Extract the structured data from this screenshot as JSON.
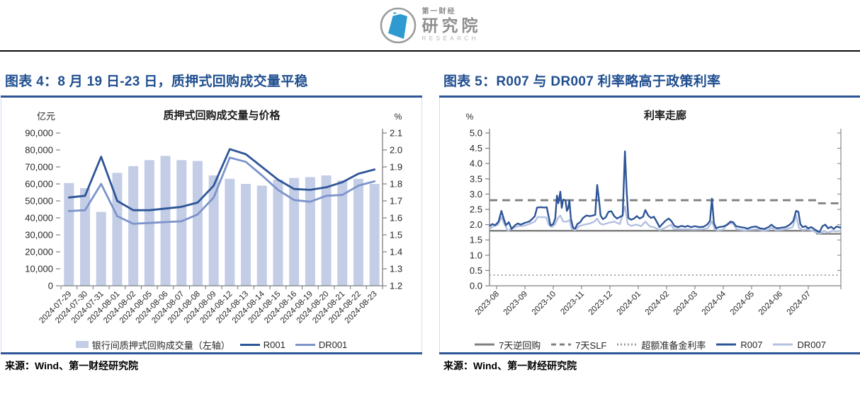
{
  "header": {
    "brand_top": "第一财经",
    "brand_main": "研究院",
    "brand_sub": "RESEARCH"
  },
  "left_panel": {
    "title": "图表 4：8 月 19 日-23 日，质押式回购成交量平稳",
    "source": "来源：Wind、第一财经研究院"
  },
  "right_panel": {
    "title": "图表 5：R007 与 DR007 利率略高于政策利率",
    "source": "来源：Wind、第一财经研究院"
  },
  "colors": {
    "title_blue": "#1f4e8f",
    "rule_blue": "#2e5597",
    "bar_fill": "#c3cde6",
    "r001_line": "#2e5597",
    "dr001_line": "#7d93cb",
    "r007_line": "#2e5597",
    "dr007_line": "#b3c0e0",
    "policy_gray": "#7f7f7f",
    "dotted_gray": "#9b9b9b",
    "axis_gray": "#7f7f7f",
    "logo_blue": "#2e9ad0",
    "logo_gray": "#9c9c9c"
  },
  "chart_data": [
    {
      "type": "bar+line",
      "title": "质押式回购成交量与价格",
      "left_axis_unit": "亿元",
      "right_axis_unit": "%",
      "left_ylim": [
        0,
        90000
      ],
      "left_tick_step": 10000,
      "right_ylim": [
        1.2,
        2.1
      ],
      "right_tick_step": 0.1,
      "categories": [
        "2024-07-29",
        "2024-07-30",
        "2024-07-31",
        "2024-08-01",
        "2024-08-02",
        "2024-08-05",
        "2024-08-06",
        "2024-08-07",
        "2024-08-08",
        "2024-08-09",
        "2024-08-12",
        "2024-08-13",
        "2024-08-14",
        "2024-08-15",
        "2024-08-16",
        "2024-08-19",
        "2024-08-20",
        "2024-08-21",
        "2024-08-22",
        "2024-08-23"
      ],
      "bar_series": {
        "name": "银行间质押式回购成交量（左轴）",
        "axis": "left",
        "values": [
          60500,
          57500,
          43500,
          66500,
          70500,
          74000,
          76500,
          74000,
          73500,
          65000,
          63000,
          60000,
          59000,
          62500,
          63500,
          64000,
          65000,
          62000,
          63000,
          60000
        ]
      },
      "series": [
        {
          "name": "R001",
          "axis": "right",
          "color": "#2e5597",
          "values": [
            1.72,
            1.73,
            1.96,
            1.7,
            1.645,
            1.645,
            1.655,
            1.665,
            1.69,
            1.79,
            2.005,
            1.975,
            1.9,
            1.825,
            1.77,
            1.765,
            1.78,
            1.81,
            1.86,
            1.885
          ]
        },
        {
          "name": "DR001",
          "axis": "right",
          "color": "#7d93cb",
          "values": [
            1.64,
            1.645,
            1.8,
            1.61,
            1.565,
            1.57,
            1.575,
            1.58,
            1.62,
            1.72,
            1.955,
            1.93,
            1.85,
            1.765,
            1.705,
            1.695,
            1.73,
            1.735,
            1.79,
            1.815
          ]
        }
      ],
      "legend_position": "bottom",
      "grid": false
    },
    {
      "type": "line",
      "title": "利率走廊",
      "left_axis_unit": "%",
      "ylim": [
        0,
        5
      ],
      "ytick_step": 0.5,
      "x_max": 12.4,
      "x_tick_labels": [
        "2023-08",
        "2023-09",
        "2023-10",
        "2023-11",
        "2023-12",
        "2024-01",
        "2024-02",
        "2024-03",
        "2024-04",
        "2024-05",
        "2024-06",
        "2024-07"
      ],
      "series": [
        {
          "name": "7天逆回购",
          "color": "#7f7f7f",
          "width": 2.4,
          "dash": "",
          "points": [
            [
              0,
              1.8
            ],
            [
              11.55,
              1.8
            ],
            [
              11.55,
              1.7
            ],
            [
              12.4,
              1.7
            ]
          ]
        },
        {
          "name": "7天SLF",
          "color": "#7f7f7f",
          "width": 2.8,
          "dash": "11,7",
          "points": [
            [
              0,
              2.8
            ],
            [
              11.55,
              2.8
            ],
            [
              11.55,
              2.7
            ],
            [
              12.4,
              2.7
            ]
          ]
        },
        {
          "name": "超额准备金利率",
          "color": "#9b9b9b",
          "width": 1.8,
          "dash": "2,3.5",
          "points": [
            [
              0,
              0.35
            ],
            [
              12.4,
              0.35
            ]
          ]
        },
        {
          "name": "DR007",
          "color": "#b3c0e0",
          "width": 2.4,
          "points": [
            [
              0,
              1.86
            ],
            [
              0.15,
              1.95
            ],
            [
              0.3,
              2.0
            ],
            [
              0.42,
              2.25
            ],
            [
              0.52,
              2.02
            ],
            [
              0.65,
              1.8
            ],
            [
              0.8,
              1.88
            ],
            [
              1.0,
              1.95
            ],
            [
              1.2,
              1.96
            ],
            [
              1.4,
              2.02
            ],
            [
              1.6,
              2.1
            ],
            [
              1.7,
              2.25
            ],
            [
              2.0,
              2.24
            ],
            [
              2.08,
              2.02
            ],
            [
              2.2,
              1.92
            ],
            [
              2.32,
              2.02
            ],
            [
              2.42,
              2.22
            ],
            [
              2.5,
              2.3
            ],
            [
              2.6,
              2.1
            ],
            [
              2.72,
              2.1
            ],
            [
              2.82,
              2.15
            ],
            [
              2.9,
              1.87
            ],
            [
              3.02,
              1.82
            ],
            [
              3.15,
              1.95
            ],
            [
              3.35,
              2.0
            ],
            [
              3.55,
              2.04
            ],
            [
              3.7,
              2.1
            ],
            [
              3.8,
              2.2
            ],
            [
              3.9,
              2.04
            ],
            [
              4.0,
              2.0
            ],
            [
              4.2,
              2.06
            ],
            [
              4.4,
              2.1
            ],
            [
              4.6,
              2.02
            ],
            [
              4.78,
              2.6
            ],
            [
              4.88,
              2.02
            ],
            [
              5.0,
              1.96
            ],
            [
              5.2,
              2.0
            ],
            [
              5.35,
              1.95
            ],
            [
              5.5,
              2.1
            ],
            [
              5.65,
              1.95
            ],
            [
              5.85,
              1.9
            ],
            [
              6.0,
              1.82
            ],
            [
              6.2,
              1.9
            ],
            [
              6.4,
              2.0
            ],
            [
              6.5,
              1.86
            ],
            [
              6.7,
              1.85
            ],
            [
              7.0,
              1.85
            ],
            [
              7.2,
              1.84
            ],
            [
              7.5,
              1.85
            ],
            [
              7.7,
              1.88
            ],
            [
              7.85,
              2.1
            ],
            [
              7.95,
              1.86
            ],
            [
              8.05,
              1.81
            ],
            [
              8.25,
              1.84
            ],
            [
              8.4,
              2.04
            ],
            [
              8.6,
              2.04
            ],
            [
              8.72,
              1.85
            ],
            [
              9.0,
              1.81
            ],
            [
              9.2,
              1.83
            ],
            [
              9.45,
              1.85
            ],
            [
              9.65,
              1.8
            ],
            [
              9.85,
              1.83
            ],
            [
              9.95,
              1.9
            ],
            [
              10.1,
              1.82
            ],
            [
              10.3,
              1.83
            ],
            [
              10.5,
              1.86
            ],
            [
              10.7,
              1.92
            ],
            [
              10.82,
              2.3
            ],
            [
              10.92,
              1.9
            ],
            [
              11.05,
              1.82
            ],
            [
              11.2,
              1.85
            ],
            [
              11.4,
              1.8
            ],
            [
              11.55,
              1.74
            ],
            [
              11.65,
              1.7
            ],
            [
              11.8,
              1.8
            ],
            [
              11.95,
              1.74
            ],
            [
              12.1,
              1.8
            ],
            [
              12.25,
              1.78
            ],
            [
              12.4,
              1.8
            ]
          ]
        },
        {
          "name": "R007",
          "color": "#2e5597",
          "width": 2.4,
          "points": [
            [
              0,
              1.95
            ],
            [
              0.1,
              2.02
            ],
            [
              0.2,
              1.98
            ],
            [
              0.32,
              2.1
            ],
            [
              0.42,
              2.45
            ],
            [
              0.5,
              2.2
            ],
            [
              0.58,
              1.98
            ],
            [
              0.68,
              2.08
            ],
            [
              0.78,
              1.86
            ],
            [
              0.9,
              1.98
            ],
            [
              1.0,
              2.04
            ],
            [
              1.1,
              2.0
            ],
            [
              1.25,
              2.06
            ],
            [
              1.4,
              2.1
            ],
            [
              1.5,
              2.18
            ],
            [
              1.6,
              2.28
            ],
            [
              1.68,
              2.56
            ],
            [
              1.8,
              2.57
            ],
            [
              1.95,
              2.56
            ],
            [
              2.02,
              2.57
            ],
            [
              2.08,
              2.3
            ],
            [
              2.15,
              1.97
            ],
            [
              2.25,
              2.02
            ],
            [
              2.32,
              2.2
            ],
            [
              2.38,
              2.95
            ],
            [
              2.43,
              2.7
            ],
            [
              2.5,
              3.08
            ],
            [
              2.55,
              2.55
            ],
            [
              2.6,
              2.82
            ],
            [
              2.68,
              2.8
            ],
            [
              2.73,
              2.45
            ],
            [
              2.78,
              2.55
            ],
            [
              2.82,
              2.8
            ],
            [
              2.87,
              2.2
            ],
            [
              2.95,
              1.9
            ],
            [
              3.02,
              1.87
            ],
            [
              3.1,
              2.02
            ],
            [
              3.2,
              2.08
            ],
            [
              3.3,
              2.22
            ],
            [
              3.42,
              2.3
            ],
            [
              3.55,
              2.28
            ],
            [
              3.65,
              2.3
            ],
            [
              3.73,
              2.32
            ],
            [
              3.8,
              3.3
            ],
            [
              3.86,
              2.85
            ],
            [
              3.92,
              2.3
            ],
            [
              4.0,
              2.18
            ],
            [
              4.1,
              2.24
            ],
            [
              4.2,
              2.42
            ],
            [
              4.3,
              2.44
            ],
            [
              4.4,
              2.28
            ],
            [
              4.5,
              2.2
            ],
            [
              4.62,
              2.26
            ],
            [
              4.7,
              2.3
            ],
            [
              4.78,
              4.4
            ],
            [
              4.84,
              3.1
            ],
            [
              4.9,
              2.22
            ],
            [
              5.0,
              2.16
            ],
            [
              5.1,
              2.2
            ],
            [
              5.2,
              2.28
            ],
            [
              5.3,
              2.2
            ],
            [
              5.42,
              2.26
            ],
            [
              5.5,
              2.48
            ],
            [
              5.6,
              2.3
            ],
            [
              5.7,
              2.22
            ],
            [
              5.8,
              2.26
            ],
            [
              5.9,
              2.1
            ],
            [
              6.0,
              1.92
            ],
            [
              6.1,
              2.02
            ],
            [
              6.2,
              2.12
            ],
            [
              6.32,
              2.2
            ],
            [
              6.42,
              2.12
            ],
            [
              6.52,
              1.96
            ],
            [
              6.65,
              1.92
            ],
            [
              6.78,
              1.96
            ],
            [
              6.9,
              1.93
            ],
            [
              7.0,
              1.96
            ],
            [
              7.1,
              1.92
            ],
            [
              7.25,
              1.95
            ],
            [
              7.4,
              1.92
            ],
            [
              7.55,
              1.93
            ],
            [
              7.68,
              2.0
            ],
            [
              7.78,
              2.12
            ],
            [
              7.85,
              2.85
            ],
            [
              7.92,
              2.05
            ],
            [
              8.0,
              1.88
            ],
            [
              8.1,
              1.92
            ],
            [
              8.25,
              1.94
            ],
            [
              8.4,
              2.0
            ],
            [
              8.5,
              2.1
            ],
            [
              8.6,
              2.08
            ],
            [
              8.7,
              1.95
            ],
            [
              8.85,
              1.92
            ],
            [
              9.0,
              1.9
            ],
            [
              9.1,
              1.87
            ],
            [
              9.25,
              1.92
            ],
            [
              9.4,
              1.94
            ],
            [
              9.55,
              1.88
            ],
            [
              9.7,
              1.86
            ],
            [
              9.85,
              1.92
            ],
            [
              9.95,
              2.0
            ],
            [
              10.05,
              1.92
            ],
            [
              10.15,
              1.88
            ],
            [
              10.3,
              1.9
            ],
            [
              10.45,
              1.92
            ],
            [
              10.6,
              2.0
            ],
            [
              10.72,
              2.12
            ],
            [
              10.82,
              2.45
            ],
            [
              10.9,
              2.42
            ],
            [
              10.97,
              2.02
            ],
            [
              11.05,
              1.92
            ],
            [
              11.15,
              1.95
            ],
            [
              11.25,
              1.88
            ],
            [
              11.35,
              1.92
            ],
            [
              11.45,
              1.86
            ],
            [
              11.55,
              1.8
            ],
            [
              11.65,
              1.76
            ],
            [
              11.75,
              1.95
            ],
            [
              11.85,
              2.0
            ],
            [
              11.95,
              1.88
            ],
            [
              12.05,
              1.93
            ],
            [
              12.15,
              1.86
            ],
            [
              12.25,
              1.94
            ],
            [
              12.4,
              1.9
            ]
          ]
        }
      ],
      "legend_order": [
        "7天逆回购",
        "7天SLF",
        "超额准备金利率",
        "R007",
        "DR007"
      ],
      "legend_position": "bottom",
      "grid": false
    }
  ]
}
